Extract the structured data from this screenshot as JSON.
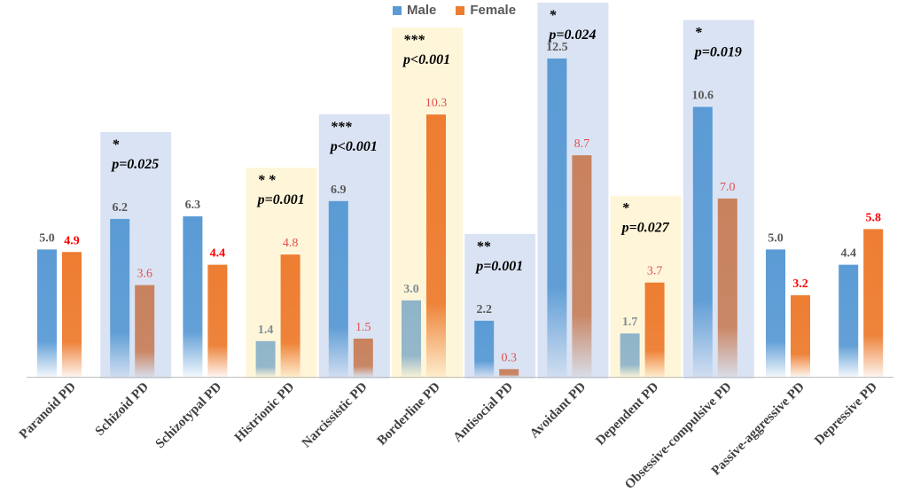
{
  "chart_data": {
    "type": "bar",
    "title": "",
    "xlabel": "",
    "ylabel": "",
    "ylim": [
      0,
      14.5
    ],
    "categories": [
      "Paranoid PD",
      "Schizoid PD",
      "Schizotypal PD",
      "Histrionic PD",
      "Narcissistic PD",
      "Borderline PD",
      "Antisocial PD",
      "Avoidant PD",
      "Dependent PD",
      "Obsessive-compulsive PD",
      "Passive-aggressive PD",
      "Depressive PD"
    ],
    "series": [
      {
        "name": "Male",
        "values": [
          5.0,
          6.2,
          6.3,
          1.4,
          6.9,
          3.0,
          2.2,
          12.5,
          1.7,
          10.6,
          5.0,
          4.4
        ],
        "labels": [
          "5.0",
          "6.2",
          "6.3",
          "1.4",
          "6.9",
          "3.0",
          "2.2",
          "12.5",
          "1.7",
          "10.6",
          "5.0",
          "4.4"
        ]
      },
      {
        "name": "Female",
        "values": [
          4.9,
          3.6,
          4.4,
          4.8,
          1.5,
          10.3,
          0.3,
          8.7,
          3.7,
          7.0,
          3.2,
          5.8
        ],
        "labels": [
          "4.9",
          "3.6",
          "4.4",
          "4.8",
          "1.5",
          "10.3",
          "0.3",
          "8.7",
          "3.7",
          "7.0",
          "3.2",
          "5.8"
        ]
      }
    ],
    "annotations": [
      {
        "category": "Schizoid PD",
        "stars": "*",
        "p": "p=0.025",
        "higher": "male"
      },
      {
        "category": "Histrionic PD",
        "stars": "* *",
        "p": "p=0.001",
        "higher": "female"
      },
      {
        "category": "Narcissistic PD",
        "stars": "***",
        "p": "p<0.001",
        "higher": "male"
      },
      {
        "category": "Borderline PD",
        "stars": "***",
        "p": "p<0.001",
        "higher": "female"
      },
      {
        "category": "Antisocial PD",
        "stars": "**",
        "p": "p=0.001",
        "higher": "male"
      },
      {
        "category": "Avoidant PD",
        "stars": "*",
        "p": "p=0.024",
        "higher": "male"
      },
      {
        "category": "Dependent PD",
        "stars": "*",
        "p": "p=0.027",
        "higher": "female"
      },
      {
        "category": "Obsessive-compulsive PD",
        "stars": "*",
        "p": "p=0.019",
        "higher": "male"
      }
    ],
    "legend": {
      "position": "top-center",
      "entries": [
        "Male",
        "Female"
      ]
    }
  },
  "colors": {
    "male": "#5b9bd5",
    "female": "#ed7d31",
    "male_muted": "#8fb4c9",
    "female_muted": "#c8825e",
    "male_label": "#595959",
    "male_label_muted": "#7f8c94",
    "female_label": "#ff0000",
    "female_label_muted": "#e05050",
    "highlight_male": "#dae3f3",
    "highlight_female": "#fff6d9",
    "axis": "#bfbfbf",
    "category_text": "#404040"
  }
}
